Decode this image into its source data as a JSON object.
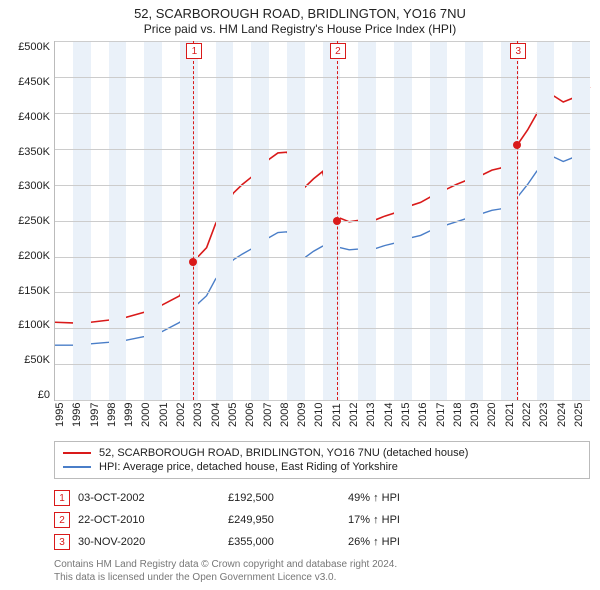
{
  "title_line1": "52, SCARBOROUGH ROAD, BRIDLINGTON, YO16 7NU",
  "title_line2": "Price paid vs. HM Land Registry's House Price Index (HPI)",
  "title_fontsize": 13,
  "subtitle_fontsize": 12,
  "colors": {
    "series_price": "#d91a1a",
    "series_hpi": "#4a7ec8",
    "grid": "#cccccc",
    "band": "#eaf1f9",
    "axis": "#bbbbbb",
    "marker_border": "#d91a1a",
    "text": "#222222",
    "footer_text": "#777777",
    "legend_border": "#bbbbbb",
    "background": "#ffffff"
  },
  "yaxis": {
    "min": 0,
    "max": 500000,
    "tick_step": 50000,
    "tick_labels": [
      "£500K",
      "£450K",
      "£400K",
      "£350K",
      "£300K",
      "£250K",
      "£200K",
      "£150K",
      "£100K",
      "£50K",
      "£0"
    ],
    "label_fontsize": 11
  },
  "xaxis": {
    "min": 1995,
    "max": 2025,
    "tick_step": 1,
    "tick_labels": [
      "1995",
      "1996",
      "1997",
      "1998",
      "1999",
      "2000",
      "2001",
      "2002",
      "2003",
      "2004",
      "2005",
      "2006",
      "2007",
      "2008",
      "2009",
      "2010",
      "2011",
      "2012",
      "2013",
      "2014",
      "2015",
      "2016",
      "2017",
      "2018",
      "2019",
      "2020",
      "2021",
      "2022",
      "2023",
      "2024",
      "2025"
    ],
    "label_fontsize": 11
  },
  "series": {
    "price": {
      "label": "52, SCARBOROUGH ROAD, BRIDLINGTON, YO16 7NU (detached house)",
      "line_width": 1.6,
      "points": [
        [
          1995.0,
          108000
        ],
        [
          1996.0,
          107000
        ],
        [
          1997.0,
          108000
        ],
        [
          1998.0,
          111000
        ],
        [
          1999.0,
          115000
        ],
        [
          2000.0,
          122000
        ],
        [
          2001.0,
          132000
        ],
        [
          2002.0,
          145000
        ],
        [
          2002.76,
          192500
        ],
        [
          2003.5,
          212000
        ],
        [
          2004.0,
          245000
        ],
        [
          2004.5,
          270000
        ],
        [
          2005.0,
          288000
        ],
        [
          2005.5,
          300000
        ],
        [
          2006.0,
          310000
        ],
        [
          2006.5,
          323000
        ],
        [
          2007.0,
          335000
        ],
        [
          2007.5,
          344000
        ],
        [
          2008.0,
          345000
        ],
        [
          2008.5,
          326000
        ],
        [
          2009.0,
          296000
        ],
        [
          2009.5,
          308000
        ],
        [
          2010.0,
          318000
        ],
        [
          2010.5,
          268000
        ],
        [
          2010.81,
          249950
        ],
        [
          2011.0,
          253000
        ],
        [
          2011.5,
          248000
        ],
        [
          2012.0,
          250000
        ],
        [
          2012.5,
          254000
        ],
        [
          2013.0,
          251000
        ],
        [
          2013.5,
          256000
        ],
        [
          2014.0,
          260000
        ],
        [
          2014.5,
          266000
        ],
        [
          2015.0,
          271000
        ],
        [
          2015.5,
          275000
        ],
        [
          2016.0,
          282000
        ],
        [
          2016.5,
          289000
        ],
        [
          2017.0,
          294000
        ],
        [
          2017.5,
          300000
        ],
        [
          2018.0,
          305000
        ],
        [
          2018.5,
          310000
        ],
        [
          2019.0,
          314000
        ],
        [
          2019.5,
          320000
        ],
        [
          2020.0,
          323000
        ],
        [
          2020.5,
          333000
        ],
        [
          2020.92,
          355000
        ],
        [
          2021.5,
          376000
        ],
        [
          2022.0,
          398000
        ],
        [
          2022.5,
          416000
        ],
        [
          2023.0,
          423000
        ],
        [
          2023.5,
          415000
        ],
        [
          2024.0,
          420000
        ],
        [
          2024.5,
          428000
        ],
        [
          2025.0,
          436000
        ]
      ]
    },
    "hpi": {
      "label": "HPI: Average price, detached house, East Riding of Yorkshire",
      "line_width": 1.4,
      "points": [
        [
          1995.0,
          76000
        ],
        [
          1996.0,
          76000
        ],
        [
          1997.0,
          78000
        ],
        [
          1998.0,
          80000
        ],
        [
          1999.0,
          83000
        ],
        [
          2000.0,
          88000
        ],
        [
          2001.0,
          95000
        ],
        [
          2002.0,
          108000
        ],
        [
          2002.76,
          128000
        ],
        [
          2003.5,
          145000
        ],
        [
          2004.0,
          168000
        ],
        [
          2004.5,
          182000
        ],
        [
          2005.0,
          195000
        ],
        [
          2005.5,
          203000
        ],
        [
          2006.0,
          210000
        ],
        [
          2006.5,
          218000
        ],
        [
          2007.0,
          226000
        ],
        [
          2007.5,
          233000
        ],
        [
          2008.0,
          234000
        ],
        [
          2008.5,
          220000
        ],
        [
          2009.0,
          198000
        ],
        [
          2009.5,
          207000
        ],
        [
          2010.0,
          214000
        ],
        [
          2010.5,
          216000
        ],
        [
          2010.81,
          213000
        ],
        [
          2011.0,
          212000
        ],
        [
          2011.5,
          209000
        ],
        [
          2012.0,
          210000
        ],
        [
          2012.5,
          212000
        ],
        [
          2013.0,
          211000
        ],
        [
          2013.5,
          215000
        ],
        [
          2014.0,
          218000
        ],
        [
          2014.5,
          222000
        ],
        [
          2015.0,
          226000
        ],
        [
          2015.5,
          229000
        ],
        [
          2016.0,
          235000
        ],
        [
          2016.5,
          240000
        ],
        [
          2017.0,
          244000
        ],
        [
          2017.5,
          248000
        ],
        [
          2018.0,
          252000
        ],
        [
          2018.5,
          256000
        ],
        [
          2019.0,
          260000
        ],
        [
          2019.5,
          264000
        ],
        [
          2020.0,
          266000
        ],
        [
          2020.5,
          275000
        ],
        [
          2020.92,
          282000
        ],
        [
          2021.5,
          300000
        ],
        [
          2022.0,
          318000
        ],
        [
          2022.5,
          332000
        ],
        [
          2023.0,
          338000
        ],
        [
          2023.5,
          332000
        ],
        [
          2024.0,
          337000
        ],
        [
          2024.5,
          343000
        ],
        [
          2025.0,
          350000
        ]
      ]
    }
  },
  "sales": [
    {
      "num": "1",
      "date": "03-OCT-2002",
      "date_frac": 2002.76,
      "price_num": 192500,
      "price": "£192,500",
      "delta": "49% ↑ HPI"
    },
    {
      "num": "2",
      "date": "22-OCT-2010",
      "date_frac": 2010.81,
      "price_num": 249950,
      "price": "£249,950",
      "delta": "17% ↑ HPI"
    },
    {
      "num": "3",
      "date": "30-NOV-2020",
      "date_frac": 2020.92,
      "price_num": 355000,
      "price": "£355,000",
      "delta": "26% ↑ HPI"
    }
  ],
  "legend_title": null,
  "footer_line1": "Contains HM Land Registry data © Crown copyright and database right 2024.",
  "footer_line2": "This data is licensed under the Open Government Licence v3.0."
}
